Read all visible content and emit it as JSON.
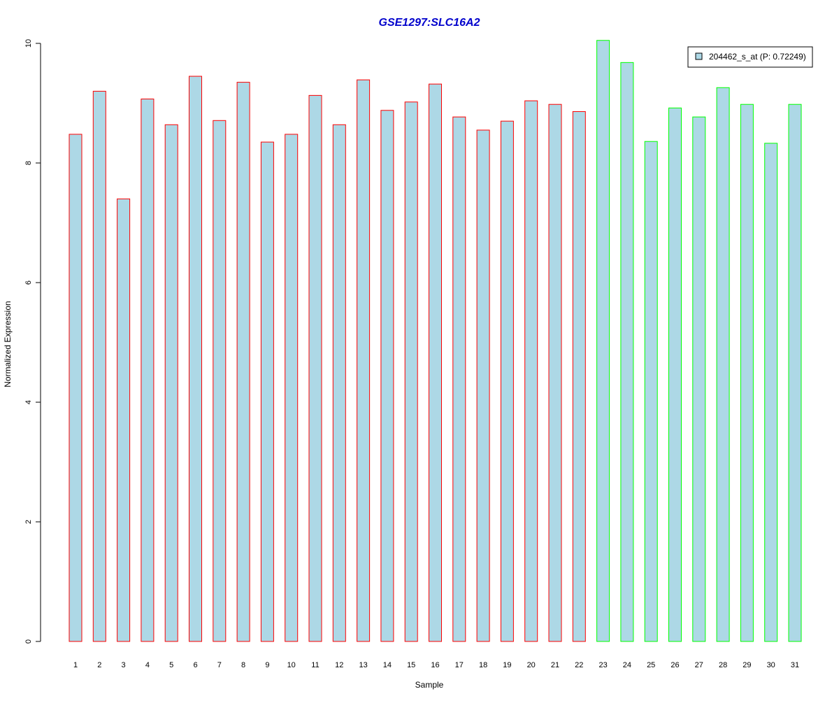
{
  "chart_data": {
    "type": "bar",
    "title": "GSE1297:SLC16A2",
    "xlabel": "Sample",
    "ylabel": "Normalized Expression",
    "ylim": [
      0,
      10
    ],
    "yticks": [
      0,
      2,
      4,
      6,
      8,
      10
    ],
    "grid": false,
    "legend": {
      "placement": "top-right",
      "entries": [
        "204462_s_at (P: 0.72249)"
      ]
    },
    "categories": [
      "1",
      "2",
      "3",
      "4",
      "5",
      "6",
      "7",
      "8",
      "9",
      "10",
      "11",
      "12",
      "13",
      "14",
      "15",
      "16",
      "17",
      "18",
      "19",
      "20",
      "21",
      "22",
      "23",
      "24",
      "25",
      "26",
      "27",
      "28",
      "29",
      "30",
      "31"
    ],
    "series": [
      {
        "name": "204462_s_at (P: 0.72249)",
        "values": [
          8.48,
          9.2,
          7.4,
          9.07,
          8.64,
          9.45,
          8.71,
          9.35,
          8.35,
          8.48,
          9.13,
          8.64,
          9.39,
          8.88,
          9.02,
          9.32,
          8.77,
          8.55,
          8.7,
          9.04,
          8.98,
          8.86,
          10.05,
          9.68,
          8.36,
          8.92,
          8.77,
          9.26,
          8.98,
          8.33,
          8.98
        ],
        "groups": [
          "red",
          "red",
          "red",
          "red",
          "red",
          "red",
          "red",
          "red",
          "red",
          "red",
          "red",
          "red",
          "red",
          "red",
          "red",
          "red",
          "red",
          "red",
          "red",
          "red",
          "red",
          "red",
          "green",
          "green",
          "green",
          "green",
          "green",
          "green",
          "green",
          "green",
          "green"
        ]
      }
    ],
    "colors": {
      "bar_fill": "#add8e6",
      "group_red": "#ff0000",
      "group_green": "#00ff00",
      "title": "#0000cc",
      "axis": "#000000"
    }
  }
}
